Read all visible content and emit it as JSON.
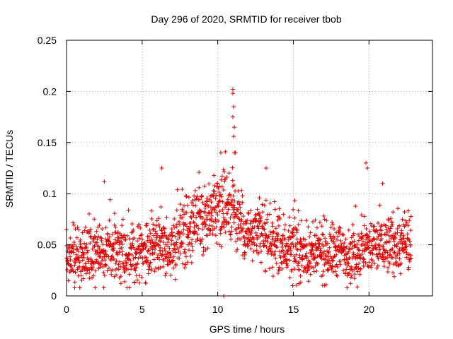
{
  "chart_data": {
    "type": "scatter",
    "title": "Day 296 of 2020, SRMTID for receiver tbob",
    "xlabel": "GPS time / hours",
    "ylabel": "SRMTID / TECUs",
    "xlim": [
      0,
      24.2
    ],
    "ylim": [
      0,
      0.25
    ],
    "xticks": [
      0,
      5,
      10,
      15,
      20
    ],
    "xtick_labels": [
      "0",
      "5",
      "10",
      "15",
      "20"
    ],
    "yticks": [
      0,
      0.05,
      0.1,
      0.15,
      0.2,
      0.25
    ],
    "ytick_labels": [
      "0",
      "0.05",
      "0.1",
      "0.15",
      "0.2",
      "0.25"
    ],
    "grid": true,
    "marker": "plus",
    "series_color": "#e00000",
    "x_data_range": [
      0,
      22.8
    ],
    "baseline_envelope": {
      "hours": [
        0,
        1,
        2,
        3,
        4,
        5,
        6,
        7,
        8,
        9,
        10,
        11,
        12,
        13,
        14,
        15,
        16,
        17,
        18,
        19,
        20,
        21,
        22,
        22.8
      ],
      "typical_srmtid": [
        0.04,
        0.038,
        0.045,
        0.05,
        0.035,
        0.04,
        0.05,
        0.045,
        0.065,
        0.072,
        0.09,
        0.085,
        0.06,
        0.06,
        0.05,
        0.045,
        0.04,
        0.042,
        0.045,
        0.04,
        0.048,
        0.05,
        0.05,
        0.048
      ]
    },
    "spikes": [
      {
        "x": 2.5,
        "y": 0.112
      },
      {
        "x": 6.3,
        "y": 0.125
      },
      {
        "x": 10.2,
        "y": 0.14
      },
      {
        "x": 10.5,
        "y": 0.141
      },
      {
        "x": 11.0,
        "y": 0.202
      },
      {
        "x": 11.0,
        "y": 0.198
      },
      {
        "x": 11.05,
        "y": 0.185
      },
      {
        "x": 11.0,
        "y": 0.175
      },
      {
        "x": 11.1,
        "y": 0.165
      },
      {
        "x": 11.05,
        "y": 0.156
      },
      {
        "x": 11.1,
        "y": 0.14
      },
      {
        "x": 13.2,
        "y": 0.125
      },
      {
        "x": 19.8,
        "y": 0.13
      },
      {
        "x": 19.9,
        "y": 0.125
      },
      {
        "x": 20.9,
        "y": 0.11
      },
      {
        "x": 10.4,
        "y": 0.0
      }
    ]
  }
}
